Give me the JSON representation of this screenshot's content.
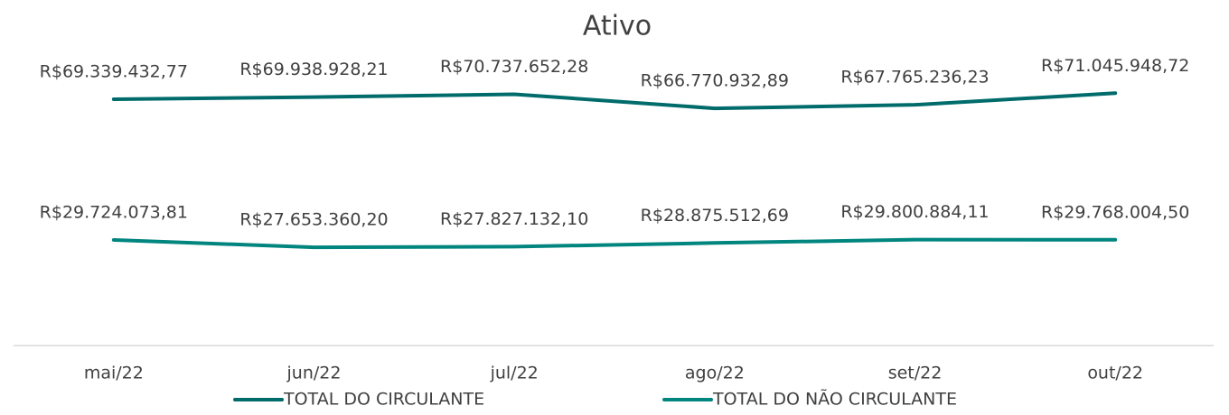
{
  "chart_data": {
    "type": "line",
    "title": "Ativo",
    "categories": [
      "mai/22",
      "jun/22",
      "jul/22",
      "ago/22",
      "set/22",
      "out/22"
    ],
    "series": [
      {
        "name": "TOTAL DO CIRCULANTE",
        "color": "#006b6b",
        "values": [
          69339432.77,
          69938928.21,
          70737652.28,
          66770932.89,
          67765236.23,
          71045948.72
        ],
        "value_labels": [
          "R$69.339.432,77",
          "R$69.938.928,21",
          "R$70.737.652,28",
          "R$66.770.932,89",
          "R$67.765.236,23",
          "R$71.045.948,72"
        ]
      },
      {
        "name": "TOTAL DO NÃO CIRCULANTE",
        "color": "#00857f",
        "values": [
          29724073.81,
          27653360.2,
          27827132.1,
          28875512.69,
          29800884.11,
          29768004.5
        ],
        "value_labels": [
          "R$29.724.073,81",
          "R$27.653.360,20",
          "R$27.827.132,10",
          "R$28.875.512,69",
          "R$29.800.884,11",
          "R$29.768.004,50"
        ]
      }
    ],
    "ylim": [
      0,
      80000000
    ],
    "legend": "bottom"
  }
}
